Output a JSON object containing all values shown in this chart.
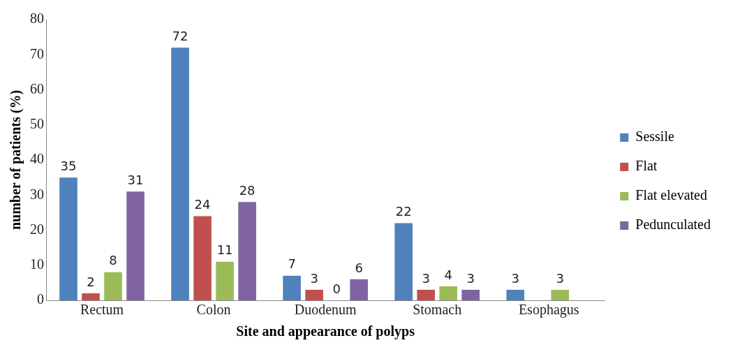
{
  "chart_data": {
    "type": "bar",
    "xlabel": "Site and appearance of polyps",
    "ylabel": "number of patients (%)",
    "categories": [
      "Rectum",
      "Colon",
      "Duodenum",
      "Stomach",
      "Esophagus"
    ],
    "series": [
      {
        "name": "Sessile",
        "color": "#4f81bd",
        "values": [
          35,
          72,
          7,
          22,
          3
        ]
      },
      {
        "name": "Flat",
        "color": "#c0504d",
        "values": [
          2,
          24,
          3,
          3,
          null
        ]
      },
      {
        "name": "Flat elevated",
        "color": "#9bbb59",
        "values": [
          8,
          11,
          0,
          4,
          3
        ]
      },
      {
        "name": "Pedunculated",
        "color": "#8064a2",
        "values": [
          31,
          28,
          6,
          3,
          null
        ]
      }
    ],
    "ylim": [
      0,
      80
    ],
    "yticks": [
      0,
      10,
      20,
      30,
      40,
      50,
      60,
      70,
      80
    ],
    "grid": false,
    "legend": "right",
    "data_labels": true
  }
}
